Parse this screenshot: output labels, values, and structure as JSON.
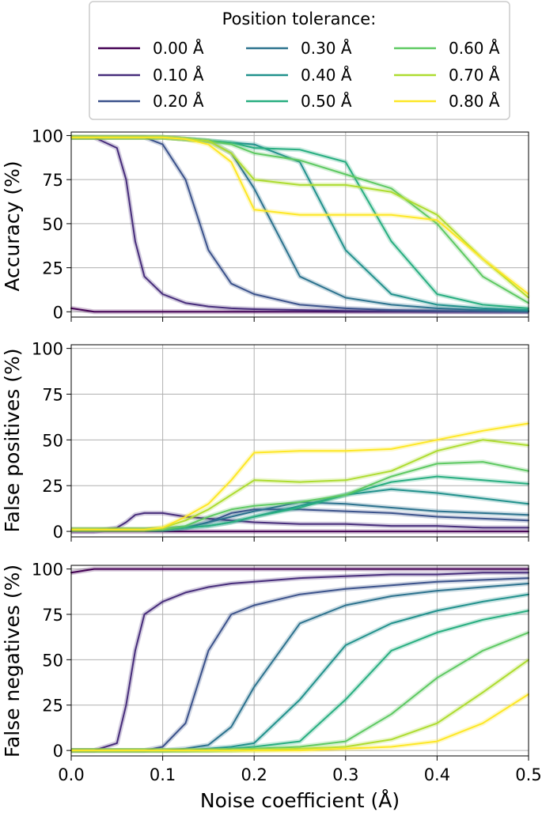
{
  "legend": {
    "title": "Position tolerance:",
    "entries": [
      "0.00 Å",
      "0.10 Å",
      "0.20 Å",
      "0.30 Å",
      "0.40 Å",
      "0.50 Å",
      "0.60 Å",
      "0.70 Å",
      "0.80 Å"
    ],
    "colors": [
      "#440154",
      "#472d7b",
      "#3b528b",
      "#2c728e",
      "#21918c",
      "#28ae80",
      "#5ec962",
      "#addc30",
      "#fde725"
    ],
    "placement": "top-center"
  },
  "chart_data": [
    {
      "type": "line",
      "title": "",
      "xlabel": "",
      "ylabel": "Accuracy (%)",
      "xlim": [
        0.0,
        0.5
      ],
      "ylim": [
        -3,
        102
      ],
      "yticks": [
        "0",
        "25",
        "50",
        "75",
        "100"
      ],
      "xticks": [],
      "grid": true,
      "x": [
        0,
        0.025,
        0.05,
        0.06,
        0.07,
        0.08,
        0.1,
        0.125,
        0.15,
        0.175,
        0.2,
        0.25,
        0.3,
        0.35,
        0.4,
        0.45,
        0.5
      ],
      "series": [
        {
          "name": "0.00 Å",
          "values": [
            2,
            0,
            0,
            0,
            0,
            0,
            0,
            0,
            0,
            0,
            0,
            0,
            0,
            0,
            0,
            0,
            0
          ]
        },
        {
          "name": "0.10 Å",
          "values": [
            99,
            99,
            93,
            75,
            40,
            20,
            10,
            5,
            3,
            2,
            1.5,
            1,
            0.5,
            0.3,
            0.2,
            0.1,
            0
          ]
        },
        {
          "name": "0.20 Å",
          "values": [
            99,
            99,
            99,
            99,
            99,
            99,
            95,
            75,
            35,
            16,
            10,
            4,
            2,
            1,
            0.5,
            0.3,
            0.2
          ]
        },
        {
          "name": "0.30 Å",
          "values": [
            99,
            99,
            99,
            99,
            99,
            99,
            99,
            98,
            97,
            90,
            70,
            20,
            8,
            4,
            2,
            1,
            0.5
          ]
        },
        {
          "name": "0.40 Å",
          "values": [
            99,
            99,
            99,
            99,
            99,
            99,
            99,
            98,
            97,
            96,
            95,
            85,
            35,
            10,
            4,
            2,
            1
          ]
        },
        {
          "name": "0.50 Å",
          "values": [
            99,
            99,
            99,
            99,
            99,
            99,
            99,
            98,
            97,
            96,
            93,
            92,
            85,
            40,
            10,
            4,
            2
          ]
        },
        {
          "name": "0.60 Å",
          "values": [
            99,
            99,
            99,
            99,
            99,
            99,
            99,
            98,
            97,
            95,
            90,
            86,
            78,
            70,
            50,
            20,
            5
          ]
        },
        {
          "name": "0.70 Å",
          "values": [
            99,
            99,
            99,
            99,
            99,
            99,
            99,
            98,
            97,
            90,
            75,
            72,
            72,
            68,
            55,
            30,
            8
          ]
        },
        {
          "name": "0.80 Å",
          "values": [
            99,
            99,
            99,
            99,
            99,
            99,
            99,
            98,
            95,
            85,
            58,
            55,
            55,
            55,
            52,
            30,
            10
          ]
        }
      ]
    },
    {
      "type": "line",
      "title": "",
      "xlabel": "",
      "ylabel": "False positives (%)",
      "xlim": [
        0.0,
        0.5
      ],
      "ylim": [
        -3,
        102
      ],
      "yticks": [
        "0",
        "25",
        "50",
        "75",
        "100"
      ],
      "xticks": [],
      "grid": true,
      "x": [
        0,
        0.025,
        0.05,
        0.06,
        0.07,
        0.08,
        0.1,
        0.125,
        0.15,
        0.175,
        0.2,
        0.25,
        0.3,
        0.35,
        0.4,
        0.45,
        0.5
      ],
      "series": [
        {
          "name": "0.00 Å",
          "values": [
            0,
            0,
            0,
            0,
            0,
            0,
            0,
            0,
            0,
            0,
            0,
            0,
            0,
            0,
            0,
            0,
            0
          ]
        },
        {
          "name": "0.10 Å",
          "values": [
            0,
            0,
            2,
            5,
            9,
            10,
            10,
            8,
            7,
            6,
            5,
            4,
            4,
            3,
            3,
            2,
            2
          ]
        },
        {
          "name": "0.20 Å",
          "values": [
            1,
            1,
            1,
            1,
            1,
            1,
            1,
            2,
            5,
            10,
            12,
            12,
            11,
            10,
            8,
            7,
            6
          ]
        },
        {
          "name": "0.30 Å",
          "values": [
            1,
            1,
            1,
            1,
            1,
            1,
            1,
            2,
            5,
            8,
            11,
            16,
            15,
            13,
            11,
            10,
            9
          ]
        },
        {
          "name": "0.40 Å",
          "values": [
            1,
            1,
            1,
            1,
            1,
            1,
            1,
            2,
            3,
            5,
            8,
            14,
            20,
            23,
            21,
            18,
            15
          ]
        },
        {
          "name": "0.50 Å",
          "values": [
            1,
            1,
            1,
            1,
            1,
            1,
            1,
            2,
            3,
            5,
            8,
            13,
            20,
            27,
            30,
            28,
            26
          ]
        },
        {
          "name": "0.60 Å",
          "values": [
            1,
            1,
            1,
            1,
            1,
            1,
            1,
            3,
            8,
            12,
            14,
            16,
            20,
            30,
            37,
            38,
            33
          ]
        },
        {
          "name": "0.70 Å",
          "values": [
            1,
            1,
            1,
            1,
            1,
            1,
            2,
            6,
            12,
            20,
            28,
            27,
            28,
            33,
            44,
            50,
            47
          ]
        },
        {
          "name": "0.80 Å",
          "values": [
            1,
            1,
            1,
            1,
            1,
            1,
            2,
            8,
            15,
            28,
            43,
            44,
            44,
            45,
            50,
            55,
            59
          ]
        }
      ]
    },
    {
      "type": "line",
      "title": "",
      "xlabel": "Noise coefficient (Å)",
      "ylabel": "False negatives (%)",
      "xlim": [
        0.0,
        0.5
      ],
      "ylim": [
        -3,
        102
      ],
      "yticks": [
        "0",
        "25",
        "50",
        "75",
        "100"
      ],
      "xticks": [
        "0.0",
        "0.1",
        "0.2",
        "0.3",
        "0.4",
        "0.5"
      ],
      "grid": true,
      "x": [
        0,
        0.025,
        0.05,
        0.06,
        0.07,
        0.08,
        0.1,
        0.125,
        0.15,
        0.175,
        0.2,
        0.25,
        0.3,
        0.35,
        0.4,
        0.45,
        0.5
      ],
      "series": [
        {
          "name": "0.00 Å",
          "values": [
            98,
            100,
            100,
            100,
            100,
            100,
            100,
            100,
            100,
            100,
            100,
            100,
            100,
            100,
            100,
            100,
            100
          ]
        },
        {
          "name": "0.10 Å",
          "values": [
            0,
            0,
            4,
            25,
            55,
            75,
            82,
            87,
            90,
            92,
            93,
            95,
            96,
            97,
            97,
            98,
            98
          ]
        },
        {
          "name": "0.20 Å",
          "values": [
            0,
            0,
            0,
            0,
            0,
            0,
            2,
            15,
            55,
            75,
            80,
            86,
            89,
            91,
            93,
            94,
            95
          ]
        },
        {
          "name": "0.30 Å",
          "values": [
            0,
            0,
            0,
            0,
            0,
            0,
            0,
            1,
            3,
            13,
            35,
            70,
            80,
            85,
            88,
            90,
            92
          ]
        },
        {
          "name": "0.40 Å",
          "values": [
            0,
            0,
            0,
            0,
            0,
            0,
            0,
            0,
            1,
            2,
            4,
            28,
            58,
            70,
            77,
            82,
            86
          ]
        },
        {
          "name": "0.50 Å",
          "values": [
            0,
            0,
            0,
            0,
            0,
            0,
            0,
            0,
            0,
            1,
            2,
            5,
            28,
            55,
            65,
            72,
            77
          ]
        },
        {
          "name": "0.60 Å",
          "values": [
            0,
            0,
            0,
            0,
            0,
            0,
            0,
            0,
            0,
            0,
            1,
            2,
            5,
            20,
            40,
            55,
            65
          ]
        },
        {
          "name": "0.70 Å",
          "values": [
            0,
            0,
            0,
            0,
            0,
            0,
            0,
            0,
            0,
            0,
            0,
            1,
            2,
            6,
            15,
            32,
            50
          ]
        },
        {
          "name": "0.80 Å",
          "values": [
            0,
            0,
            0,
            0,
            0,
            0,
            0,
            0,
            0,
            0,
            0,
            0,
            1,
            2,
            5,
            15,
            31
          ]
        }
      ]
    }
  ]
}
